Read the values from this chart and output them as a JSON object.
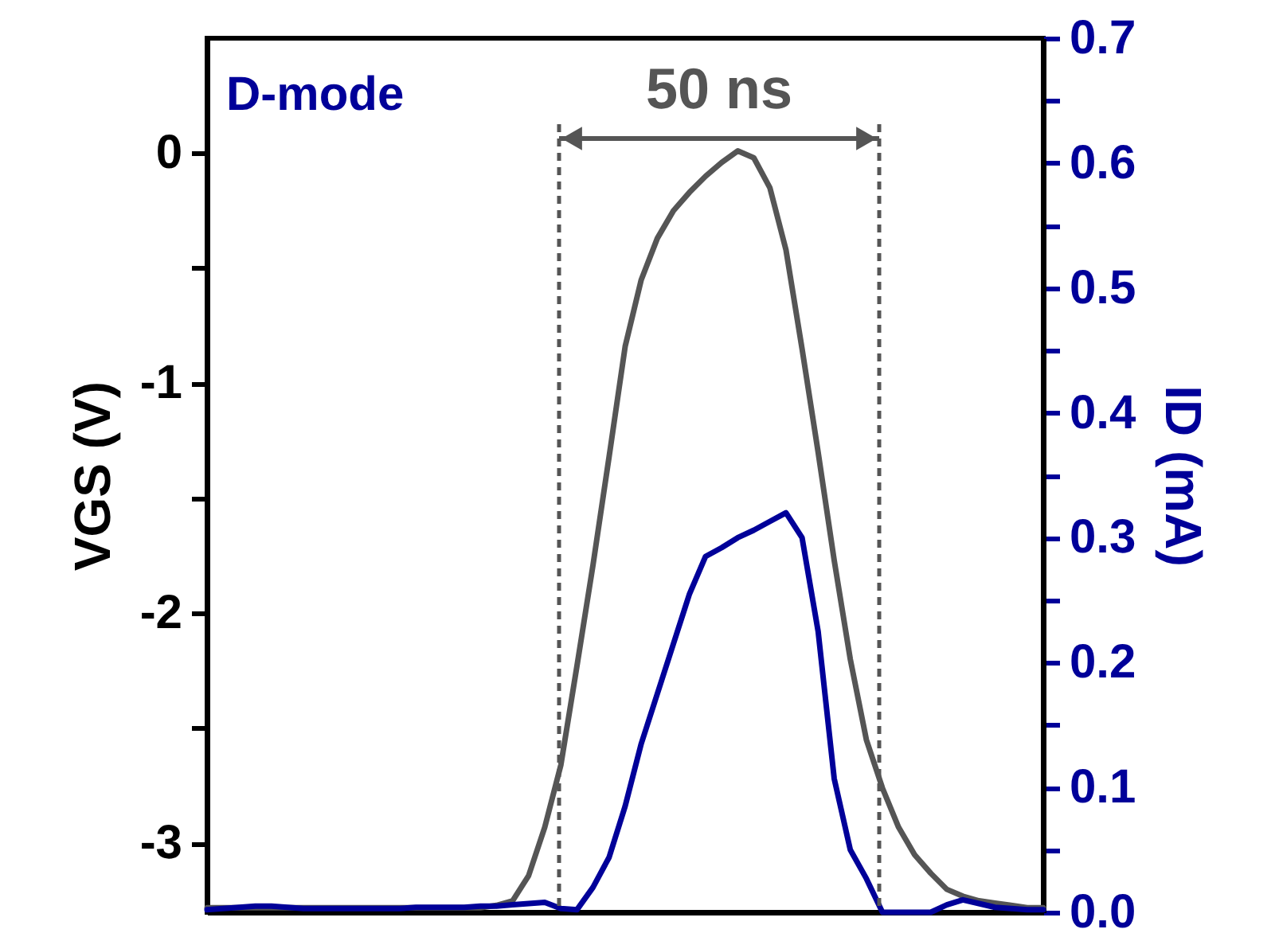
{
  "chart_data": {
    "type": "line",
    "annotations": [
      "D-mode",
      "50 ns"
    ],
    "ylabel": "VGS (V)",
    "y2label": "ID (mA)",
    "categories": [
      null,
      null,
      null,
      null,
      null,
      null,
      null,
      null,
      null,
      null,
      null,
      null,
      null,
      null,
      null,
      null,
      null,
      null,
      null,
      null,
      null,
      null,
      null,
      null,
      null,
      null,
      null,
      null,
      null,
      null,
      null,
      null,
      null,
      null,
      null,
      null,
      null,
      null,
      null,
      null,
      null,
      null,
      null,
      null,
      null,
      null,
      null,
      null,
      null,
      null,
      null,
      null,
      null
    ],
    "ylim": [
      -3.3,
      0.5
    ],
    "yticks": [
      -3,
      {
        "value": -2.5,
        "label": null
      },
      -2,
      {
        "value": -1.5,
        "label": null
      },
      -1,
      {
        "value": -0.5,
        "label": null
      },
      0
    ],
    "y2lim": [
      0,
      0.7
    ],
    "y2ticks": [
      {
        "value": 0,
        "label": "0.0"
      },
      {
        "value": 0.05,
        "label": null
      },
      0.1,
      {
        "value": 0.15,
        "label": null
      },
      0.2,
      {
        "value": 0.25,
        "label": null
      },
      0.3,
      {
        "value": 0.35,
        "label": null
      },
      0.4,
      {
        "value": 0.45,
        "label": null
      },
      0.5,
      {
        "value": 0.55,
        "label": null
      },
      0.6,
      {
        "value": 0.65,
        "label": null
      },
      0.7
    ],
    "grid": false,
    "series": [
      {
        "color": "#555555",
        "values": [
          -3.28,
          -3.28,
          -3.28,
          -3.28,
          -3.28,
          -3.28,
          -3.28,
          -3.28,
          -3.28,
          -3.28,
          -3.28,
          -3.28,
          -3.28,
          -3.28,
          -3.28,
          -3.28,
          -3.28,
          -3.28,
          -3.27,
          -3.25,
          -3.14,
          -2.93,
          -2.66,
          -2.23,
          -1.79,
          -1.32,
          -0.84,
          -0.55,
          -0.37,
          -0.25,
          -0.17,
          -0.1,
          -0.04,
          0.01,
          -0.02,
          -0.15,
          -0.42,
          -0.85,
          -1.3,
          -1.77,
          -2.2,
          -2.55,
          -2.76,
          -2.93,
          -3.05,
          -3.13,
          -3.2,
          -3.23,
          -3.25,
          -3.26,
          -3.27,
          -3.28,
          -3.28
        ]
      },
      {
        "color": "#000099",
        "axis": "y2",
        "values": [
          0.002,
          0.003,
          0.004,
          0.005,
          0.005,
          0.004,
          0.003,
          0.003,
          0.003,
          0.003,
          0.003,
          0.003,
          0.003,
          0.004,
          0.004,
          0.004,
          0.004,
          0.005,
          0.005,
          0.006,
          0.007,
          0.008,
          0.003,
          0.002,
          0.02,
          0.044,
          0.085,
          0.135,
          0.175,
          0.215,
          0.255,
          0.285,
          0.292,
          0.3,
          0.306,
          0.313,
          0.32,
          0.3,
          0.225,
          0.107,
          0.05,
          0.027,
          0.0,
          0.0,
          0.0,
          0.0,
          0.006,
          0.01,
          0.007,
          0.004,
          0.003,
          0.002,
          0.002
        ]
      }
    ]
  }
}
